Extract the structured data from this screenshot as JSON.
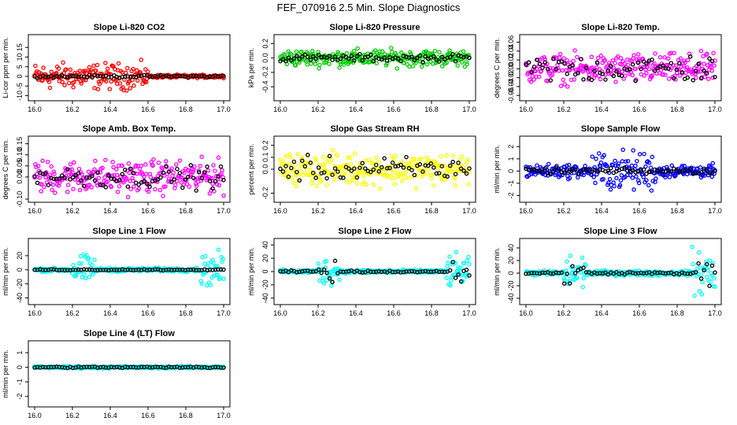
{
  "figure": {
    "title": "FEF_070916  2.5 Min. Slope Diagnostics"
  },
  "chart_data": [
    {
      "type": "scatter",
      "title": "Slope Li-820 CO2",
      "ylabel": "Li-cor ppm per min.",
      "xlim": [
        16.0,
        17.0
      ],
      "ylim": [
        -11,
        20
      ],
      "xticks": [
        "16.0",
        "16.2",
        "16.4",
        "16.6",
        "16.8",
        "17.0"
      ],
      "yticks": [
        "-10",
        "-5",
        "0",
        "5",
        "10",
        "15"
      ],
      "series": [
        {
          "color": "#ff0000",
          "spread": 4,
          "profile": "early"
        },
        {
          "color": "#000000",
          "spread": 0.4,
          "profile": "flat"
        }
      ]
    },
    {
      "type": "scatter",
      "title": "Slope Li-820 Pressure",
      "ylabel": "kPa per min.",
      "xlim": [
        16.0,
        17.0
      ],
      "ylim": [
        -0.55,
        0.28
      ],
      "xticks": [
        "16.0",
        "16.2",
        "16.4",
        "16.6",
        "16.8",
        "17.0"
      ],
      "yticks": [
        "-0.4",
        "-0.2",
        "0.0",
        "0.2"
      ],
      "series": [
        {
          "color": "#00cc00",
          "spread": 0.07,
          "profile": "uniform"
        },
        {
          "color": "#000000",
          "spread": 0.03,
          "profile": "flat"
        }
      ]
    },
    {
      "type": "scatter",
      "title": "Slope Li-820 Temp.",
      "ylabel": "degrees C per min.",
      "xlim": [
        16.0,
        17.0
      ],
      "ylim": [
        -0.065,
        0.07
      ],
      "xticks": [
        "16.0",
        "16.2",
        "16.4",
        "16.6",
        "16.8",
        "17.0"
      ],
      "yticks": [
        "-0.06",
        "-0.04",
        "-0.02",
        "0.00",
        "0.02",
        "0.04",
        "0.06"
      ],
      "series": [
        {
          "color": "#ff00ff",
          "spread": 0.02,
          "profile": "uniform"
        },
        {
          "color": "#000000",
          "spread": 0.02,
          "profile": "uniform"
        }
      ]
    },
    {
      "type": "scatter",
      "title": "Slope Amb. Box Temp.",
      "ylabel": "degrees C per min.",
      "xlim": [
        16.0,
        17.0
      ],
      "ylim": [
        -0.1,
        0.17
      ],
      "xticks": [
        "16.0",
        "16.2",
        "16.4",
        "16.6",
        "16.8",
        "17.0"
      ],
      "yticks": [
        "-0.10",
        "0.00",
        "0.05",
        "0.10",
        "0.15"
      ],
      "series": [
        {
          "color": "#ff00ff",
          "spread": 0.045,
          "profile": "uniform"
        },
        {
          "color": "#000000",
          "spread": 0.03,
          "profile": "uniform"
        }
      ]
    },
    {
      "type": "scatter",
      "title": "Slope Gas Stream RH",
      "ylabel": "percent per min.",
      "xlim": [
        16.0,
        17.0
      ],
      "ylim": [
        -0.25,
        0.25
      ],
      "xticks": [
        "16.0",
        "16.2",
        "16.4",
        "16.6",
        "16.8",
        "17.0"
      ],
      "yticks": [
        "-0.2",
        "0.0",
        "0.1",
        "0.2"
      ],
      "series": [
        {
          "color": "#ffff00",
          "spread": 0.08,
          "profile": "uniform"
        },
        {
          "color": "#000000",
          "spread": 0.06,
          "profile": "uniform"
        }
      ]
    },
    {
      "type": "scatter",
      "title": "Slope Sample Flow",
      "ylabel": "ml/min per min.",
      "xlim": [
        16.0,
        17.0
      ],
      "ylim": [
        -2.3,
        2.6
      ],
      "xticks": [
        "16.0",
        "16.2",
        "16.4",
        "16.6",
        "16.8",
        "17.0"
      ],
      "yticks": [
        "-2",
        "-1",
        "0",
        "1",
        "2"
      ],
      "series": [
        {
          "color": "#0000ff",
          "spread": 0.6,
          "profile": "mid"
        },
        {
          "color": "#000000",
          "spread": 0.15,
          "profile": "flat"
        }
      ]
    },
    {
      "type": "scatter",
      "title": "Slope Line 1 Flow",
      "ylabel": "ml/min per min.",
      "xlim": [
        16.0,
        17.0
      ],
      "ylim": [
        -45,
        40
      ],
      "xticks": [
        "16.0",
        "16.2",
        "16.4",
        "16.6",
        "16.8",
        "17.0"
      ],
      "yticks": [
        "-40",
        "-20",
        "0",
        "20"
      ],
      "series": [
        {
          "color": "#00ffff",
          "spread": 2,
          "profile": "edges"
        },
        {
          "color": "#000000",
          "spread": 0.5,
          "profile": "flat"
        }
      ]
    },
    {
      "type": "scatter",
      "title": "Slope Line 2 Flow",
      "ylabel": "ml/min per min.",
      "xlim": [
        16.0,
        17.0
      ],
      "ylim": [
        -45,
        45
      ],
      "xticks": [
        "16.0",
        "16.2",
        "16.4",
        "16.6",
        "16.8",
        "17.0"
      ],
      "yticks": [
        "-40",
        "-20",
        "0",
        "20",
        "40"
      ],
      "series": [
        {
          "color": "#00ffff",
          "spread": 2,
          "profile": "edges"
        },
        {
          "color": "#000000",
          "spread": 1.5,
          "profile": "edges-small"
        }
      ]
    },
    {
      "type": "scatter",
      "title": "Slope Line 3 Flow",
      "ylabel": "ml/min per min.",
      "xlim": [
        16.0,
        17.0
      ],
      "ylim": [
        -45,
        50
      ],
      "xticks": [
        "16.0",
        "16.2",
        "16.4",
        "16.6",
        "16.8",
        "17.0"
      ],
      "yticks": [
        "-40",
        "-20",
        "0",
        "20",
        "40"
      ],
      "series": [
        {
          "color": "#00ffff",
          "spread": 3,
          "profile": "edges"
        },
        {
          "color": "#000000",
          "spread": 2,
          "profile": "edges-small"
        }
      ]
    },
    {
      "type": "scatter",
      "title": "Slope Line 4 (LT) Flow",
      "ylabel": "ml/min per min.",
      "xlim": [
        16.0,
        17.0
      ],
      "ylim": [
        -2.5,
        1.6
      ],
      "xticks": [
        "16.0",
        "16.2",
        "16.4",
        "16.6",
        "16.8",
        "17.0"
      ],
      "yticks": [
        "-2",
        "-1",
        "0",
        "1"
      ],
      "series": [
        {
          "color": "#00ffff",
          "spread": 0.05,
          "profile": "flat"
        },
        {
          "color": "#000000",
          "spread": 0.03,
          "profile": "flat"
        }
      ]
    }
  ]
}
